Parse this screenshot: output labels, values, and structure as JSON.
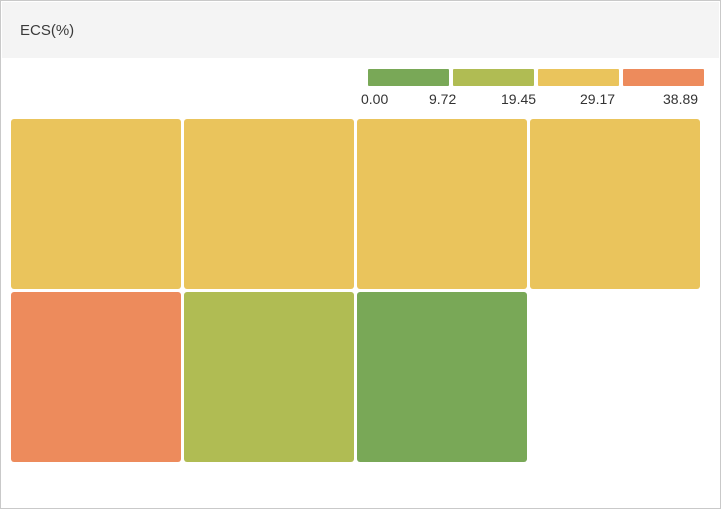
{
  "panel": {
    "title": "ECS(%)"
  },
  "legend": {
    "ticks": [
      "0.00",
      "9.72",
      "19.45",
      "29.17",
      "38.89"
    ],
    "colors": [
      "#79a857",
      "#b0bc53",
      "#eac45c",
      "#ed8b5c"
    ]
  },
  "chart_data": {
    "type": "heatmap",
    "title": "ECS(%)",
    "color_scale": {
      "thresholds": [
        0.0,
        9.72,
        19.45,
        29.17,
        38.89
      ],
      "colors": [
        "#79a857",
        "#b0bc53",
        "#eac45c",
        "#ed8b5c"
      ]
    },
    "columns": 4,
    "cells": [
      {
        "bin": 2,
        "color": "#eac45c"
      },
      {
        "bin": 2,
        "color": "#eac45c"
      },
      {
        "bin": 2,
        "color": "#eac45c"
      },
      {
        "bin": 2,
        "color": "#eac45c"
      },
      {
        "bin": 3,
        "color": "#ed8b5c"
      },
      {
        "bin": 1,
        "color": "#b0bc53"
      },
      {
        "bin": 0,
        "color": "#79a857"
      }
    ]
  }
}
